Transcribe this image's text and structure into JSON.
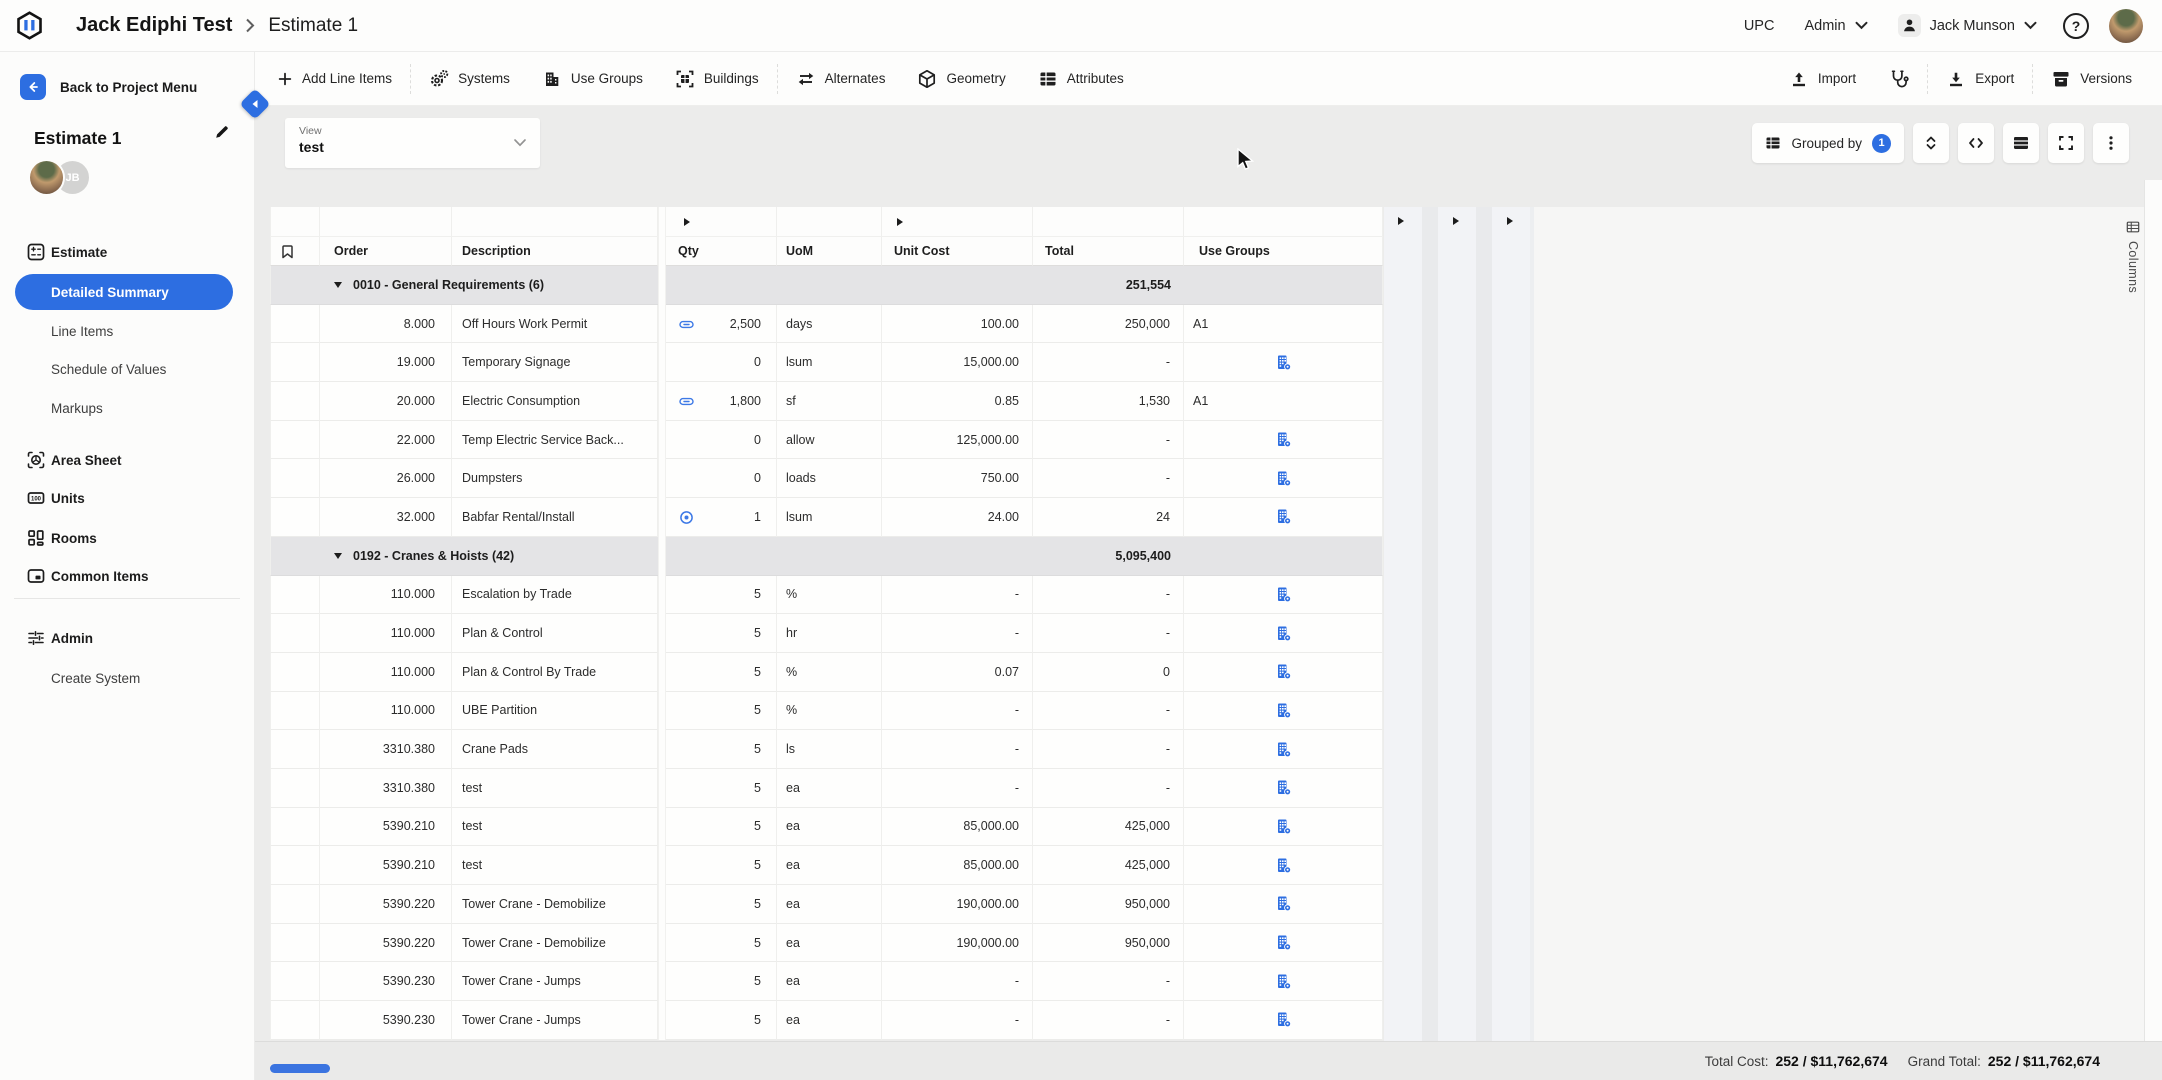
{
  "topbar": {
    "project": "Jack Ediphi Test",
    "page": "Estimate 1",
    "env": "UPC",
    "role": "Admin",
    "user": "Jack Munson"
  },
  "toolbar": {
    "add_line_items": "Add Line Items",
    "systems": "Systems",
    "use_groups": "Use Groups",
    "buildings": "Buildings",
    "alternates": "Alternates",
    "geometry": "Geometry",
    "attributes": "Attributes",
    "import": "Import",
    "export": "Export",
    "versions": "Versions"
  },
  "sidebar": {
    "back_label": "Back to Project Menu",
    "estimate_name": "Estimate 1",
    "avatar_initials": "JB",
    "items": [
      {
        "label": "Estimate",
        "icon": "estimate",
        "type": "section"
      },
      {
        "label": "Detailed Summary",
        "type": "sub",
        "selected": true
      },
      {
        "label": "Line Items",
        "type": "sub"
      },
      {
        "label": "Schedule of Values",
        "type": "sub"
      },
      {
        "label": "Markups",
        "type": "sub"
      },
      {
        "label": "Area Sheet",
        "icon": "area-sheet",
        "type": "section"
      },
      {
        "label": "Units",
        "icon": "units",
        "type": "section"
      },
      {
        "label": "Rooms",
        "icon": "rooms",
        "type": "section"
      },
      {
        "label": "Common Items",
        "icon": "common-items",
        "type": "section"
      },
      {
        "type": "divider"
      },
      {
        "label": "Admin",
        "icon": "admin",
        "type": "section"
      },
      {
        "label": "Create System",
        "type": "sub"
      }
    ]
  },
  "view": {
    "label": "View",
    "value": "test"
  },
  "controls": {
    "grouped_by_label": "Grouped by",
    "grouped_by_count": "1"
  },
  "columns_panel": {
    "label": "Columns"
  },
  "grid": {
    "headers": {
      "order": "Order",
      "description": "Description",
      "qty": "Qty",
      "uom": "UoM",
      "unit_cost": "Unit Cost",
      "total": "Total",
      "use_groups": "Use Groups"
    },
    "groups": [
      {
        "label": "0010 - General Requirements (6)",
        "total": "251,554",
        "rows": [
          {
            "order": "8.000",
            "description": "Off Hours Work Permit",
            "qty_icon": "link-icon",
            "qty": "2,500",
            "uom": "days",
            "unit_cost": "100.00",
            "total": "250,000",
            "use_group": "A1",
            "use_group_icon": null
          },
          {
            "order": "19.000",
            "description": "Temporary Signage",
            "qty_icon": null,
            "qty": "0",
            "uom": "lsum",
            "unit_cost": "15,000.00",
            "total": "-",
            "use_group": "",
            "use_group_icon": "building-gear-icon"
          },
          {
            "order": "20.000",
            "description": "Electric Consumption",
            "qty_icon": "link-icon",
            "qty": "1,800",
            "uom": "sf",
            "unit_cost": "0.85",
            "total": "1,530",
            "use_group": "A1",
            "use_group_icon": null
          },
          {
            "order": "22.000",
            "description": "Temp Electric Service Back...",
            "qty_icon": null,
            "qty": "0",
            "uom": "allow",
            "unit_cost": "125,000.00",
            "total": "-",
            "use_group": "",
            "use_group_icon": "building-gear-icon"
          },
          {
            "order": "26.000",
            "description": "Dumpsters",
            "qty_icon": null,
            "qty": "0",
            "uom": "loads",
            "unit_cost": "750.00",
            "total": "-",
            "use_group": "",
            "use_group_icon": "building-gear-icon"
          },
          {
            "order": "32.000",
            "description": "Babfar Rental/Install",
            "qty_icon": "target-icon",
            "qty": "1",
            "uom": "lsum",
            "unit_cost": "24.00",
            "total": "24",
            "use_group": "",
            "use_group_icon": "building-gear-icon"
          }
        ]
      },
      {
        "label": "0192 - Cranes & Hoists (42)",
        "total": "5,095,400",
        "rows": [
          {
            "order": "110.000",
            "description": "Escalation by Trade",
            "qty_icon": null,
            "qty": "5",
            "uom": "%",
            "unit_cost": "-",
            "total": "-",
            "use_group": "",
            "use_group_icon": "building-gear-icon"
          },
          {
            "order": "110.000",
            "description": "Plan & Control",
            "qty_icon": null,
            "qty": "5",
            "uom": "hr",
            "unit_cost": "-",
            "total": "-",
            "use_group": "",
            "use_group_icon": "building-gear-icon"
          },
          {
            "order": "110.000",
            "description": "Plan & Control By Trade",
            "qty_icon": null,
            "qty": "5",
            "uom": "%",
            "unit_cost": "0.07",
            "total": "0",
            "use_group": "",
            "use_group_icon": "building-gear-icon"
          },
          {
            "order": "110.000",
            "description": "UBE Partition",
            "qty_icon": null,
            "qty": "5",
            "uom": "%",
            "unit_cost": "-",
            "total": "-",
            "use_group": "",
            "use_group_icon": "building-gear-icon"
          },
          {
            "order": "3310.380",
            "description": "Crane Pads",
            "qty_icon": null,
            "qty": "5",
            "uom": "ls",
            "unit_cost": "-",
            "total": "-",
            "use_group": "",
            "use_group_icon": "building-gear-icon"
          },
          {
            "order": "3310.380",
            "description": "test",
            "qty_icon": null,
            "qty": "5",
            "uom": "ea",
            "unit_cost": "-",
            "total": "-",
            "use_group": "",
            "use_group_icon": "building-gear-icon"
          },
          {
            "order": "5390.210",
            "description": "test",
            "qty_icon": null,
            "qty": "5",
            "uom": "ea",
            "unit_cost": "85,000.00",
            "total": "425,000",
            "use_group": "",
            "use_group_icon": "building-gear-icon"
          },
          {
            "order": "5390.210",
            "description": "test",
            "qty_icon": null,
            "qty": "5",
            "uom": "ea",
            "unit_cost": "85,000.00",
            "total": "425,000",
            "use_group": "",
            "use_group_icon": "building-gear-icon"
          },
          {
            "order": "5390.220",
            "description": "Tower Crane - Demobilize",
            "qty_icon": null,
            "qty": "5",
            "uom": "ea",
            "unit_cost": "190,000.00",
            "total": "950,000",
            "use_group": "",
            "use_group_icon": "building-gear-icon"
          },
          {
            "order": "5390.220",
            "description": "Tower Crane - Demobilize",
            "qty_icon": null,
            "qty": "5",
            "uom": "ea",
            "unit_cost": "190,000.00",
            "total": "950,000",
            "use_group": "",
            "use_group_icon": "building-gear-icon"
          },
          {
            "order": "5390.230",
            "description": "Tower Crane - Jumps",
            "qty_icon": null,
            "qty": "5",
            "uom": "ea",
            "unit_cost": "-",
            "total": "-",
            "use_group": "",
            "use_group_icon": "building-gear-icon"
          },
          {
            "order": "5390.230",
            "description": "Tower Crane - Jumps",
            "qty_icon": null,
            "qty": "5",
            "uom": "ea",
            "unit_cost": "-",
            "total": "-",
            "use_group": "",
            "use_group_icon": "building-gear-icon"
          }
        ]
      }
    ]
  },
  "footer": {
    "total_cost_label": "Total Cost:",
    "total_cost_value": "252 / $11,762,674",
    "grand_total_label": "Grand Total:",
    "grand_total_value": "252 / $11,762,674"
  },
  "colors": {
    "primary_blue": "#2D6EE1",
    "link_blue": "#3D79E6",
    "group_row_bg": "#E4E4E6"
  }
}
